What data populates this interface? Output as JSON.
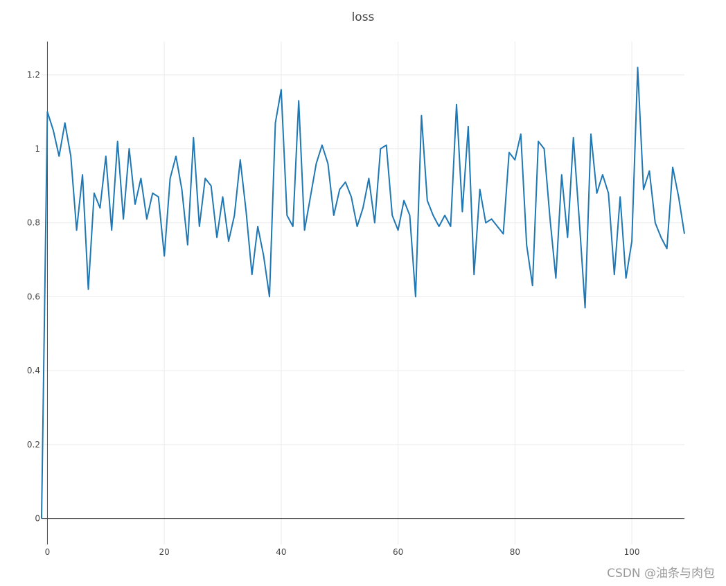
{
  "chart_data": {
    "type": "line",
    "title": "loss",
    "xlabel": "",
    "ylabel": "",
    "xlim": [
      -1,
      109
    ],
    "ylim": [
      -0.07,
      1.29
    ],
    "x_ticks": [
      0,
      20,
      40,
      60,
      80,
      100
    ],
    "x_tick_labels": [
      "0",
      "20",
      "40",
      "60",
      "80",
      "100"
    ],
    "y_ticks": [
      0,
      0.2,
      0.4,
      0.6,
      0.8,
      1.0,
      1.2
    ],
    "y_tick_labels": [
      "0",
      "0.2",
      "0.4",
      "0.6",
      "0.8",
      "1",
      "1.2"
    ],
    "grid": true,
    "series": [
      {
        "color": "#1f77b4",
        "x_start": -1,
        "values": [
          0.0,
          1.1,
          1.05,
          0.98,
          1.07,
          0.98,
          0.78,
          0.93,
          0.62,
          0.88,
          0.84,
          0.98,
          0.78,
          1.02,
          0.81,
          1.0,
          0.85,
          0.92,
          0.81,
          0.88,
          0.87,
          0.71,
          0.92,
          0.98,
          0.89,
          0.74,
          1.03,
          0.79,
          0.92,
          0.9,
          0.76,
          0.87,
          0.75,
          0.82,
          0.97,
          0.83,
          0.66,
          0.79,
          0.71,
          0.6,
          1.07,
          1.16,
          0.82,
          0.79,
          1.13,
          0.78,
          0.87,
          0.96,
          1.01,
          0.96,
          0.82,
          0.89,
          0.91,
          0.87,
          0.79,
          0.84,
          0.92,
          0.8,
          1.0,
          1.01,
          0.82,
          0.78,
          0.86,
          0.82,
          0.6,
          1.09,
          0.86,
          0.82,
          0.79,
          0.82,
          0.79,
          1.12,
          0.83,
          1.06,
          0.66,
          0.89,
          0.8,
          0.81,
          0.79,
          0.77,
          0.99,
          0.97,
          1.04,
          0.74,
          0.63,
          1.02,
          1.0,
          0.81,
          0.65,
          0.93,
          0.76,
          1.03,
          0.81,
          0.57,
          1.04,
          0.88,
          0.93,
          0.88,
          0.66,
          0.87,
          0.65,
          0.75,
          1.22,
          0.89,
          0.94,
          0.8,
          0.76,
          0.73,
          0.95,
          0.87,
          0.77
        ]
      }
    ]
  },
  "watermark": "CSDN @油条与肉包"
}
